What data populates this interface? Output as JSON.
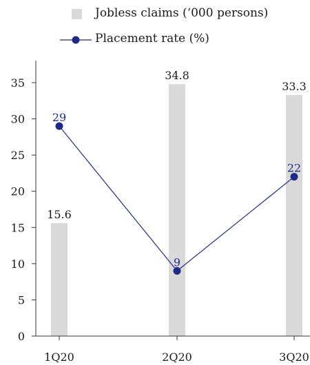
{
  "chart_data": {
    "type": "bar+line",
    "categories": [
      "1Q20",
      "2Q20",
      "3Q20"
    ],
    "series": [
      {
        "name": "Jobless claims ('000 persons)",
        "kind": "bar",
        "values": [
          15.6,
          34.8,
          33.3
        ],
        "color": "#d9d9d9",
        "labels": [
          "15.6",
          "34.8",
          "33.3"
        ]
      },
      {
        "name": "Placement rate (%)",
        "kind": "line",
        "values": [
          29,
          9,
          22
        ],
        "color": "#1f2a87",
        "labels": [
          "29",
          "9",
          "22"
        ]
      }
    ],
    "ylim": [
      0,
      38
    ],
    "yticks": [
      "0",
      "5",
      "10",
      "15",
      "20",
      "25",
      "30",
      "35"
    ],
    "legend_position": "top"
  },
  "legend": {
    "bar_label": "Jobless claims (‘000 persons)",
    "line_label": "Placement rate (%)"
  }
}
